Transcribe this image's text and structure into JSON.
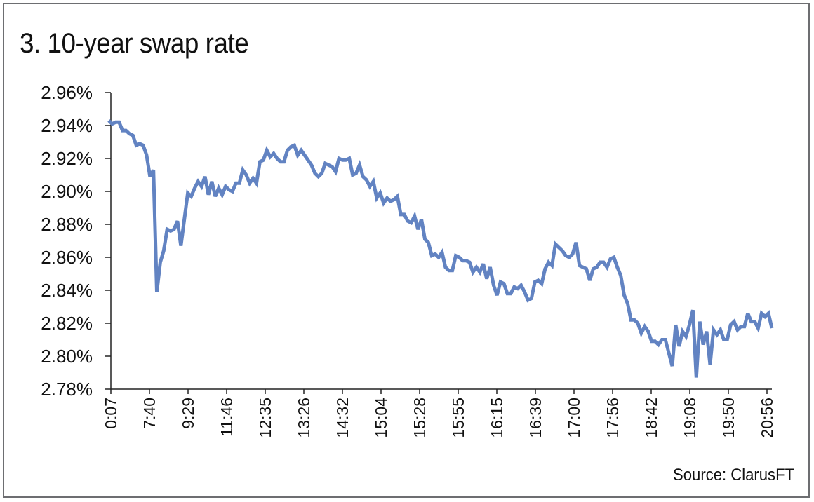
{
  "chart_data": {
    "type": "line",
    "title": "3. 10-year swap rate",
    "source": "Source: ClarusFT",
    "xlabel": "",
    "ylabel": "",
    "y_ticks": [
      "2.78%",
      "2.80%",
      "2.82%",
      "2.84%",
      "2.86%",
      "2.88%",
      "2.90%",
      "2.92%",
      "2.94%",
      "2.96%"
    ],
    "ylim": [
      2.78,
      2.96
    ],
    "x_ticks": [
      "0:07",
      "7:40",
      "9:29",
      "11:46",
      "12:35",
      "13:26",
      "14:32",
      "15:04",
      "15:28",
      "15:55",
      "16:15",
      "16:39",
      "17:00",
      "17:56",
      "18:42",
      "19:08",
      "19:50",
      "20:56"
    ],
    "grid": false,
    "line_color": "#6283c2",
    "series": [
      {
        "name": "10-year swap rate",
        "values": [
          2.943,
          2.941,
          2.942,
          2.942,
          2.937,
          2.937,
          2.935,
          2.934,
          2.928,
          2.929,
          2.928,
          2.922,
          2.909,
          2.913,
          2.839,
          2.857,
          2.864,
          2.877,
          2.876,
          2.877,
          2.882,
          2.867,
          2.883,
          2.899,
          2.897,
          2.902,
          2.906,
          2.903,
          2.909,
          2.898,
          2.906,
          2.897,
          2.902,
          2.898,
          2.903,
          2.901,
          2.9,
          2.905,
          2.905,
          2.913,
          2.91,
          2.905,
          2.908,
          2.905,
          2.918,
          2.919,
          2.925,
          2.921,
          2.923,
          2.92,
          2.918,
          2.918,
          2.925,
          2.927,
          2.928,
          2.922,
          2.925,
          2.922,
          2.919,
          2.916,
          2.911,
          2.909,
          2.911,
          2.917,
          2.916,
          2.915,
          2.912,
          2.92,
          2.919,
          2.919,
          2.92,
          2.91,
          2.911,
          2.916,
          2.909,
          2.907,
          2.903,
          2.906,
          2.896,
          2.899,
          2.893,
          2.896,
          2.894,
          2.895,
          2.897,
          2.886,
          2.886,
          2.882,
          2.881,
          2.885,
          2.877,
          2.883,
          2.871,
          2.869,
          2.861,
          2.862,
          2.86,
          2.863,
          2.854,
          2.852,
          2.852,
          2.861,
          2.86,
          2.858,
          2.858,
          2.857,
          2.851,
          2.854,
          2.851,
          2.856,
          2.847,
          2.854,
          2.843,
          2.837,
          2.845,
          2.844,
          2.838,
          2.838,
          2.842,
          2.841,
          2.843,
          2.839,
          2.834,
          2.835,
          2.845,
          2.846,
          2.844,
          2.853,
          2.857,
          2.855,
          2.868,
          2.866,
          2.864,
          2.861,
          2.86,
          2.862,
          2.869,
          2.855,
          2.854,
          2.853,
          2.846,
          2.853,
          2.854,
          2.857,
          2.857,
          2.854,
          2.859,
          2.86,
          2.854,
          2.849,
          2.837,
          2.832,
          2.822,
          2.822,
          2.82,
          2.814,
          2.818,
          2.815,
          2.809,
          2.809,
          2.807,
          2.81,
          2.81,
          2.802,
          2.794,
          2.819,
          2.806,
          2.815,
          2.812,
          2.819,
          2.828,
          2.787,
          2.821,
          2.807,
          2.815,
          2.795,
          2.816,
          2.813,
          2.816,
          2.81,
          2.81,
          2.819,
          2.821,
          2.816,
          2.818,
          2.818,
          2.826,
          2.821,
          2.821,
          2.817,
          2.826,
          2.824,
          2.826,
          2.817
        ]
      }
    ]
  }
}
